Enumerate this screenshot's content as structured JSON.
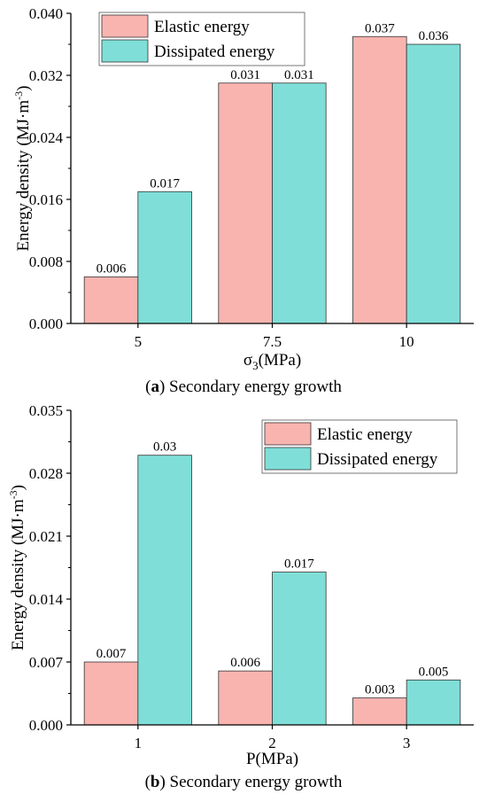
{
  "colors": {
    "elastic": "#f9b4b0",
    "dissipated": "#7fdfd8",
    "axis": "#000000"
  },
  "captions": [
    {
      "letter": "a",
      "text": " Secondary energy growth"
    },
    {
      "letter": "b",
      "text": " Secondary energy growth"
    }
  ],
  "chart_data": [
    {
      "type": "bar",
      "categories": [
        "5",
        "7.5",
        "10"
      ],
      "series": [
        {
          "name": "Elastic energy",
          "values": [
            0.006,
            0.031,
            0.037
          ],
          "labels": [
            "0.006",
            "0.031",
            "0.037"
          ]
        },
        {
          "name": "Dissipated energy",
          "values": [
            0.017,
            0.031,
            0.036
          ],
          "labels": [
            "0.017",
            "0.031",
            "0.036"
          ]
        }
      ],
      "xlabel_main": "σ",
      "xlabel_sub": "3",
      "xlabel_rest": "(MPa)",
      "ylabel": "Energy density (MJ·m",
      "ylabel_sup": "-3",
      "ylabel_end": ")",
      "ylim": [
        0,
        0.04
      ],
      "yticks": [
        "0.000",
        "0.008",
        "0.016",
        "0.024",
        "0.032",
        "0.040"
      ],
      "ytick_values": [
        0,
        0.008,
        0.016,
        0.024,
        0.032,
        0.04
      ],
      "legend_position": "top-left"
    },
    {
      "type": "bar",
      "categories": [
        "1",
        "2",
        "3"
      ],
      "series": [
        {
          "name": "Elastic energy",
          "values": [
            0.007,
            0.006,
            0.003
          ],
          "labels": [
            "0.007",
            "0.006",
            "0.003"
          ]
        },
        {
          "name": "Dissipated energy",
          "values": [
            0.03,
            0.017,
            0.005
          ],
          "labels": [
            "0.03",
            "0.017",
            "0.005"
          ]
        }
      ],
      "xlabel_main": "P(MPa)",
      "xlabel_sub": "",
      "xlabel_rest": "",
      "ylabel": "Energy density (MJ·m",
      "ylabel_sup": "-3",
      "ylabel_end": ")",
      "ylim": [
        0,
        0.035
      ],
      "yticks": [
        "0.000",
        "0.007",
        "0.014",
        "0.021",
        "0.028",
        "0.035"
      ],
      "ytick_values": [
        0,
        0.007,
        0.014,
        0.021,
        0.028,
        0.035
      ],
      "legend_position": "top-right"
    }
  ]
}
